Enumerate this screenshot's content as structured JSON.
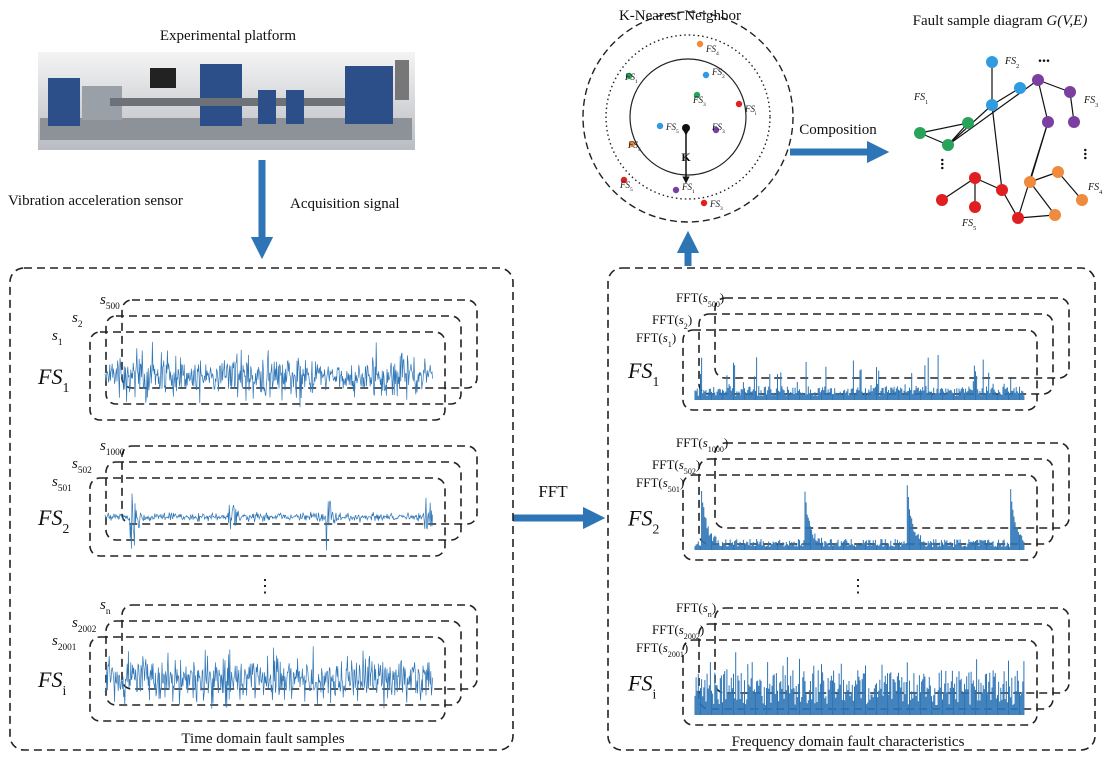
{
  "platform": {
    "title": "Experimental platform"
  },
  "arrows": {
    "sensor": "Vibration acceleration sensor",
    "acquisition": "Acquisition signal",
    "fft": "FFT",
    "composition": "Composition"
  },
  "knn": {
    "title": "K-Nearest Neighbor",
    "k": "K",
    "labels": [
      {
        "base": "FS",
        "sub": "4"
      },
      {
        "base": "FS",
        "sub": "1"
      },
      {
        "base": "FS",
        "sub": "2"
      },
      {
        "base": "FS",
        "sub": "3"
      },
      {
        "base": "FS",
        "sub": "5"
      },
      {
        "base": "FS",
        "sub": "3"
      },
      {
        "base": "FS",
        "sub": "i"
      },
      {
        "base": "FS",
        "sub": "4"
      },
      {
        "base": "FS",
        "sub": "1"
      },
      {
        "base": "FS",
        "sub": "5"
      },
      {
        "base": "FS",
        "sub": "3"
      }
    ]
  },
  "graph": {
    "title": "Fault sample diagram ",
    "title_math": "G(V,E)",
    "ellipsis": "...",
    "labels": [
      {
        "base": "FS",
        "sub": "1"
      },
      {
        "base": "FS",
        "sub": "2"
      },
      {
        "base": "FS",
        "sub": "3"
      },
      {
        "base": "FS",
        "sub": "4"
      },
      {
        "base": "FS",
        "sub": "5"
      }
    ]
  },
  "time_domain": {
    "caption": "Time domain fault samples",
    "ellipsis": "⋮",
    "groups": [
      {
        "name": {
          "base": "FS",
          "sub": "1"
        },
        "samples": [
          {
            "base": "s",
            "sub": "1"
          },
          {
            "base": "s",
            "sub": "2"
          },
          {
            "base": "s",
            "sub": "500"
          }
        ]
      },
      {
        "name": {
          "base": "FS",
          "sub": "2"
        },
        "samples": [
          {
            "base": "s",
            "sub": "501"
          },
          {
            "base": "s",
            "sub": "502"
          },
          {
            "base": "s",
            "sub": "1000"
          }
        ]
      },
      {
        "name": {
          "base": "FS",
          "sub": "i"
        },
        "samples": [
          {
            "base": "s",
            "sub": "2001"
          },
          {
            "base": "s",
            "sub": "2002"
          },
          {
            "base": "s",
            "sub": "n"
          }
        ]
      }
    ]
  },
  "frequency_domain": {
    "caption": "Frequency domain fault characteristics",
    "ellipsis": "⋮",
    "groups": [
      {
        "name": {
          "base": "FS",
          "sub": "1"
        },
        "samples": [
          {
            "pre": "FFT(",
            "base": "s",
            "sub": "1",
            "post": ")"
          },
          {
            "pre": "FFT(",
            "base": "s",
            "sub": "2",
            "post": ")"
          },
          {
            "pre": "FFT(",
            "base": "s",
            "sub": "500",
            "post": ")"
          }
        ]
      },
      {
        "name": {
          "base": "FS",
          "sub": "2"
        },
        "samples": [
          {
            "pre": "FFT(",
            "base": "s",
            "sub": "501",
            "post": ")"
          },
          {
            "pre": "FFT(",
            "base": "s",
            "sub": "502",
            "post": ")"
          },
          {
            "pre": "FFT(",
            "base": "s",
            "sub": "1000",
            "post": ")"
          }
        ]
      },
      {
        "name": {
          "base": "FS",
          "sub": "i"
        },
        "samples": [
          {
            "pre": "FFT(",
            "base": "s",
            "sub": "2001",
            "post": ")"
          },
          {
            "pre": "FFT(",
            "base": "s",
            "sub": "2002",
            "post": ")"
          },
          {
            "pre": "FFT(",
            "base": "s",
            "sub": "n",
            "post": ")"
          }
        ]
      }
    ]
  }
}
